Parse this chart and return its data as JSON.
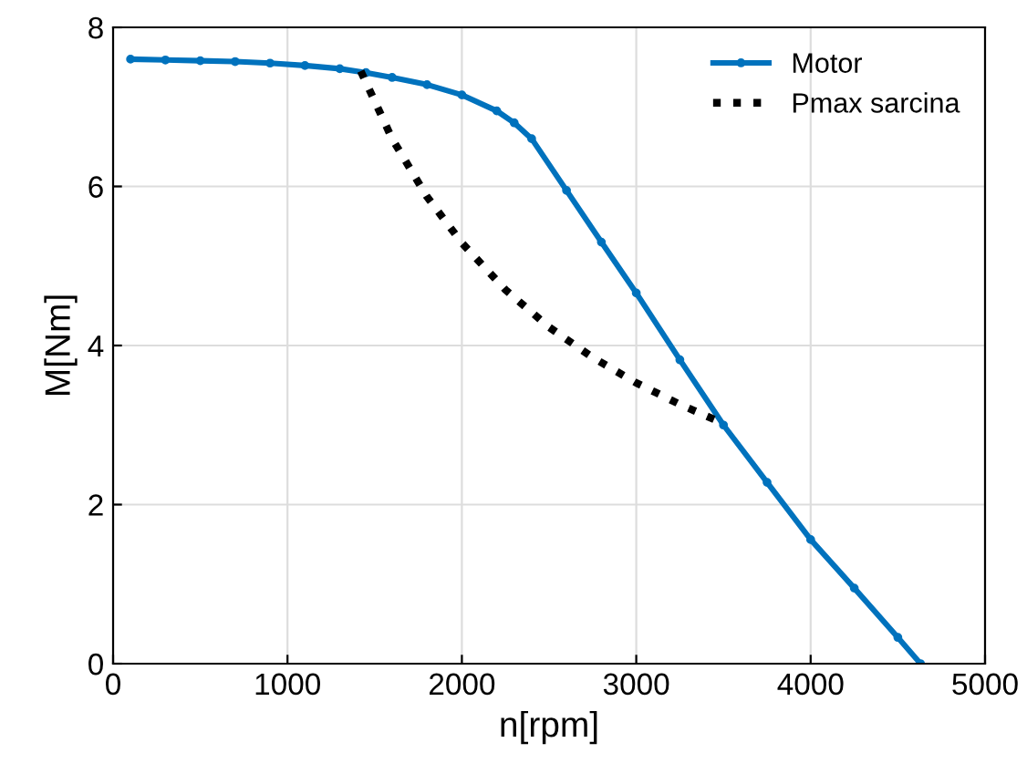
{
  "chart_data": {
    "type": "line",
    "xlabel": "n[rpm]",
    "ylabel": "M[Nm]",
    "xlim": [
      0,
      5000
    ],
    "ylim": [
      0,
      8
    ],
    "xticks": [
      0,
      1000,
      2000,
      3000,
      4000,
      5000
    ],
    "yticks": [
      0,
      2,
      4,
      6,
      8
    ],
    "grid": true,
    "legend": "top right",
    "series": [
      {
        "name": "Motor",
        "color": "#0072bd",
        "marker": "circle",
        "line_style": "solid",
        "x": [
          100,
          300,
          500,
          700,
          900,
          1100,
          1300,
          1450,
          1600,
          1800,
          2000,
          2200,
          2300,
          2400,
          2600,
          2800,
          3000,
          3250,
          3500,
          3750,
          4000,
          4250,
          4500,
          4630
        ],
        "values": [
          7.6,
          7.59,
          7.58,
          7.57,
          7.55,
          7.52,
          7.48,
          7.43,
          7.37,
          7.28,
          7.15,
          6.95,
          6.8,
          6.6,
          5.95,
          5.3,
          4.66,
          3.82,
          3.0,
          2.28,
          1.56,
          0.95,
          0.33,
          0
        ]
      },
      {
        "name": "Pmax sarcina",
        "color": "#000000",
        "marker": "none",
        "line_style": "dotted",
        "x": [
          1420,
          1600,
          1800,
          2000,
          2250,
          2500,
          2750,
          3000,
          3250,
          3500
        ],
        "values": [
          7.45,
          6.6,
          5.87,
          5.29,
          4.7,
          4.23,
          3.85,
          3.53,
          3.26,
          3.02
        ]
      }
    ]
  }
}
